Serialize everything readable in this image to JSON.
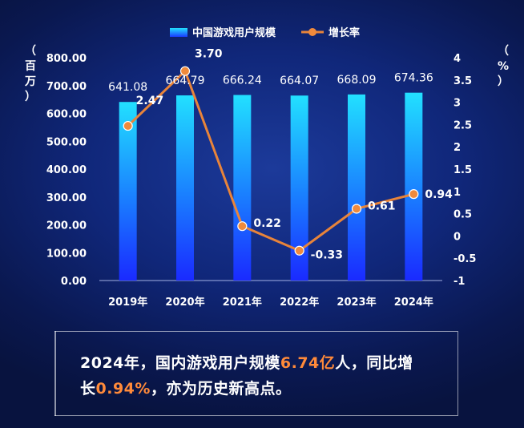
{
  "chart_data": {
    "type": "bar",
    "categories": [
      "2019年",
      "2020年",
      "2021年",
      "2022年",
      "2023年",
      "2024年"
    ],
    "series": [
      {
        "name": "中国游戏用户规模",
        "type": "bar",
        "axis": "left",
        "values": [
          641.08,
          664.79,
          666.24,
          664.07,
          668.09,
          674.36
        ],
        "labels": [
          "641.08",
          "664.79",
          "666.24",
          "664.07",
          "668.09",
          "674.36"
        ]
      },
      {
        "name": "增长率",
        "type": "line",
        "axis": "right",
        "values": [
          2.47,
          3.7,
          0.22,
          -0.33,
          0.61,
          0.94
        ],
        "labels": [
          "2.47",
          "3.70",
          "0.22",
          "-0.33",
          "0.61",
          "0.94"
        ]
      }
    ],
    "y_left": {
      "label_chars": [
        "（",
        "百",
        "万",
        "）"
      ],
      "ylim": [
        0,
        800
      ],
      "ticks": [
        "0.00",
        "100.00",
        "200.00",
        "300.00",
        "400.00",
        "500.00",
        "600.00",
        "700.00",
        "800.00"
      ]
    },
    "y_right": {
      "label_chars": [
        "（",
        "%",
        "）"
      ],
      "ylim": [
        -1,
        4
      ],
      "ticks": [
        "-1",
        "-0.5",
        "0",
        "0.5",
        "1",
        "1.5",
        "2",
        "2.5",
        "3",
        "3.5",
        "4"
      ]
    },
    "legend_position": "top-center",
    "grid": false,
    "colors": {
      "bar_top": "#22e0ff",
      "bar_bottom": "#1a2aff",
      "line": "#e8843a",
      "marker": "#f08a3c",
      "text": "#ffffff"
    }
  },
  "note": {
    "line1_a": "2024年，国内游戏用户规模",
    "line1_hl": "6.74亿",
    "line1_b": "人，同比增",
    "line2_a": "长",
    "line2_hl": "0.94%",
    "line2_b": "，亦为历史新高点。"
  }
}
